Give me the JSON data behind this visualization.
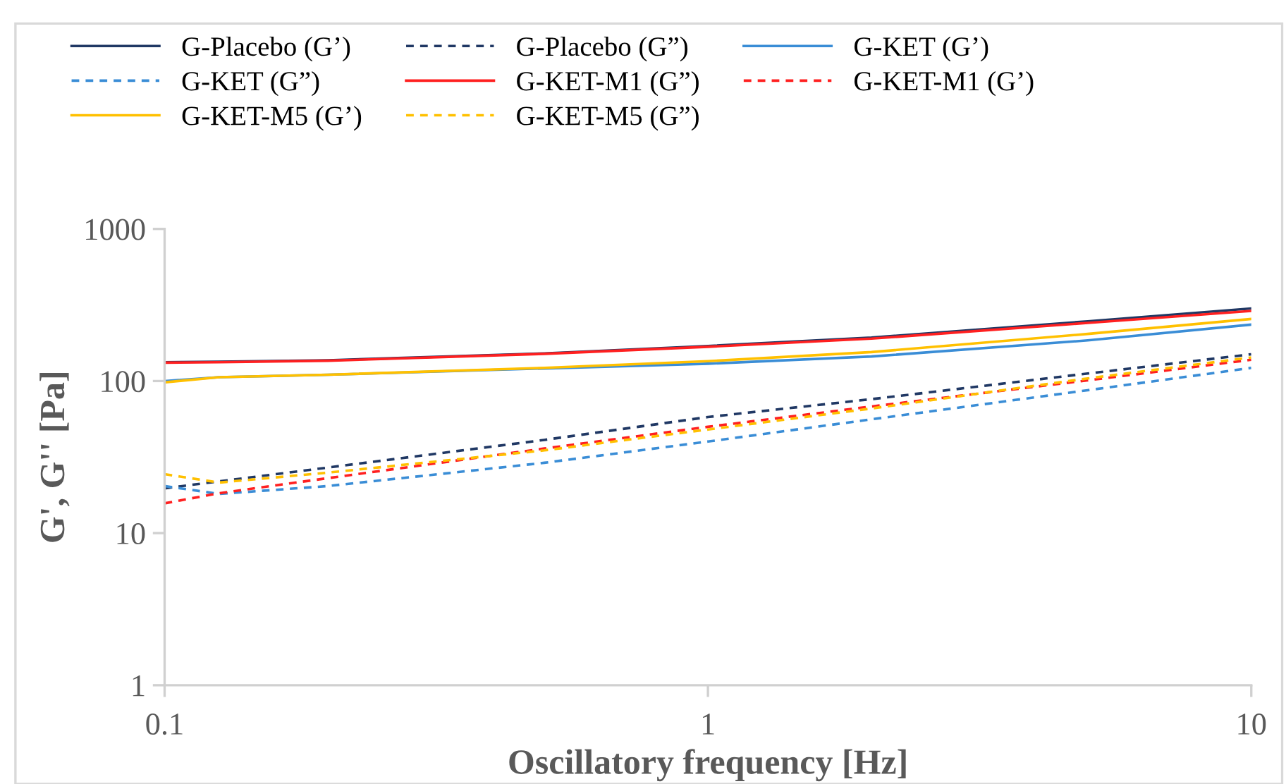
{
  "chart_data": {
    "type": "line",
    "xlabel": "Oscillatory frequency [Hz]",
    "ylabel": "G', G'' [Pa]",
    "log": "xy",
    "xlim": [
      0.1,
      10
    ],
    "xticks": [
      0.1,
      1,
      10
    ],
    "ylim": [
      1,
      1000
    ],
    "yticks": [
      1,
      10,
      100,
      1000
    ],
    "grid": false,
    "legend": "top",
    "x": [
      0.1,
      0.126,
      0.2,
      0.5,
      1,
      2,
      5,
      10
    ],
    "series": [
      {
        "name": "G-Placebo (G’)",
        "color": "#203864",
        "line_style": "solid",
        "values": [
          133,
          134,
          137,
          152,
          170,
          193,
          247,
          300
        ]
      },
      {
        "name": "G-Placebo (G”)",
        "color": "#203864",
        "line_style": "dashed",
        "values": [
          19.7,
          21.9,
          27,
          41,
          58,
          76,
          112,
          150
        ]
      },
      {
        "name": "G-KET (G’)",
        "color": "#3a8dd6",
        "line_style": "solid",
        "values": [
          100,
          106,
          110,
          121,
          130,
          145,
          185,
          235
        ]
      },
      {
        "name": "G-KET (G”)",
        "color": "#3a8dd6",
        "line_style": "dashed",
        "values": [
          20.4,
          18.1,
          20.4,
          29,
          40,
          56,
          87,
          122
        ]
      },
      {
        "name": "G-KET-M1 (G”)",
        "color": "#ff2020",
        "line_style": "solid",
        "values": [
          132,
          133,
          136,
          151,
          168,
          190,
          241,
          289
        ]
      },
      {
        "name": "G-KET-M1 (G’)",
        "color": "#ff2020",
        "line_style": "dashed",
        "values": [
          15.7,
          18.3,
          23,
          36,
          50,
          68,
          101,
          138
        ]
      },
      {
        "name": "G-KET-M5 (G’)",
        "color": "#ffc000",
        "line_style": "solid",
        "values": [
          98,
          106,
          110,
          122,
          135,
          155,
          204,
          256
        ]
      },
      {
        "name": "G-KET-M5 (G”)",
        "color": "#ffc000",
        "line_style": "dashed",
        "values": [
          24.4,
          21.5,
          25,
          35,
          48,
          66,
          104,
          143
        ]
      }
    ]
  }
}
